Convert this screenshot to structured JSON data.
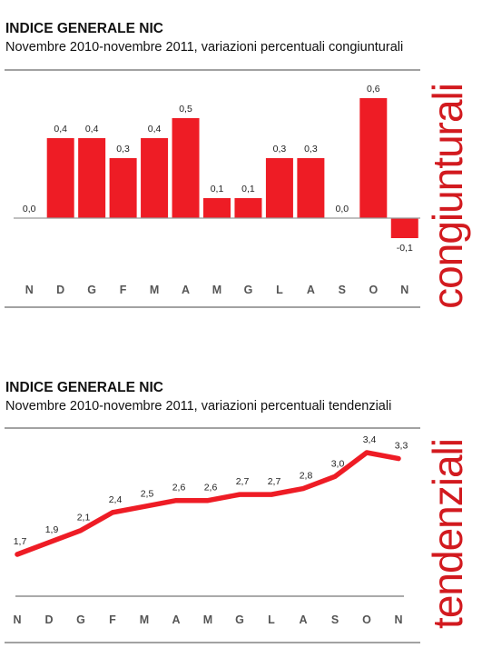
{
  "chart_data": [
    {
      "type": "bar",
      "title": "INDICE GENERALE NIC",
      "subtitle": "Novembre 2010-novembre 2011, variazioni percentuali congiunturali",
      "side_label": "congiunturali",
      "categories": [
        "N",
        "D",
        "G",
        "F",
        "M",
        "A",
        "M",
        "G",
        "L",
        "A",
        "S",
        "O",
        "N"
      ],
      "values": [
        0.0,
        0.4,
        0.4,
        0.3,
        0.4,
        0.5,
        0.1,
        0.1,
        0.3,
        0.3,
        0.0,
        0.6,
        -0.1
      ],
      "labels": [
        "0,0",
        "0,4",
        "0,4",
        "0,3",
        "0,4",
        "0,5",
        "0,1",
        "0,1",
        "0,3",
        "0,3",
        "0,0",
        "0,6",
        "-0,1"
      ],
      "ylim": [
        -0.1,
        0.6
      ],
      "color": "#ee1c25"
    },
    {
      "type": "line",
      "title": "INDICE GENERALE NIC",
      "subtitle": "Novembre 2010-novembre 2011, variazioni percentuali tendenziali",
      "side_label": "tendenziali",
      "categories": [
        "N",
        "D",
        "G",
        "F",
        "M",
        "A",
        "M",
        "G",
        "L",
        "A",
        "S",
        "O",
        "N"
      ],
      "values": [
        1.7,
        1.9,
        2.1,
        2.4,
        2.5,
        2.6,
        2.6,
        2.7,
        2.7,
        2.8,
        3.0,
        3.4,
        3.3
      ],
      "labels": [
        "1,7",
        "1,9",
        "2,1",
        "2,4",
        "2,5",
        "2,6",
        "2,6",
        "2,7",
        "2,7",
        "2,8",
        "3,0",
        "3,4",
        "3,3"
      ],
      "color": "#ee1c25"
    }
  ]
}
